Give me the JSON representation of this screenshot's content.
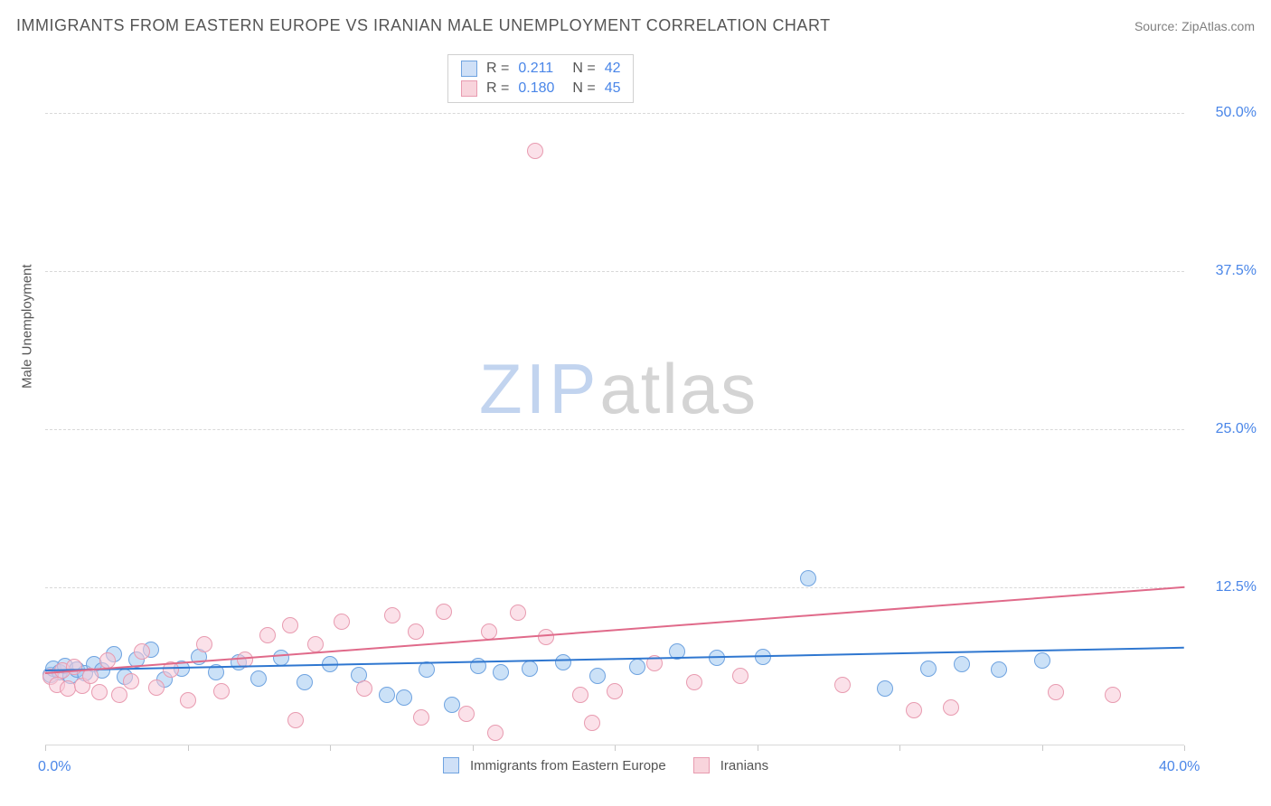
{
  "header": {
    "title": "IMMIGRANTS FROM EASTERN EUROPE VS IRANIAN MALE UNEMPLOYMENT CORRELATION CHART",
    "source": "Source: ZipAtlas.com"
  },
  "axes": {
    "y_label": "Male Unemployment",
    "x_min": 0,
    "x_max": 40,
    "y_min": 0,
    "y_max": 55,
    "y_ticks": [
      12.5,
      25.0,
      37.5,
      50.0
    ],
    "y_tick_labels": [
      "12.5%",
      "25.0%",
      "37.5%",
      "50.0%"
    ],
    "x_ticks": [
      0,
      5,
      10,
      15,
      20,
      25,
      30,
      35,
      40
    ],
    "x_left_label": "0.0%",
    "x_right_label": "40.0%",
    "grid_color": "#d8d8d8",
    "tick_label_color": "#4a86e8"
  },
  "watermark": {
    "zip": "ZIP",
    "atlas": "atlas"
  },
  "legend_top": {
    "rows": [
      {
        "swatch_fill": "#cfe0f7",
        "swatch_border": "#6fa3e0",
        "r_label": "R =",
        "r_value": "0.211",
        "n_label": "N =",
        "n_value": "42"
      },
      {
        "swatch_fill": "#f8d4dc",
        "swatch_border": "#e89bb0",
        "r_label": "R =",
        "r_value": "0.180",
        "n_label": "N =",
        "n_value": "45"
      }
    ]
  },
  "legend_bottom": {
    "items": [
      {
        "swatch_fill": "#cfe0f7",
        "swatch_border": "#6fa3e0",
        "label": "Immigrants from Eastern Europe"
      },
      {
        "swatch_fill": "#f8d4dc",
        "swatch_border": "#e89bb0",
        "label": "Iranians"
      }
    ]
  },
  "series": [
    {
      "name": "Immigrants from Eastern Europe",
      "marker_fill": "rgba(160,200,240,0.55)",
      "marker_border": "#6fa3e0",
      "marker_radius": 9,
      "trend_color": "#2f77d0",
      "trend": {
        "x1": 0,
        "y1": 6.0,
        "x2": 40,
        "y2": 7.8
      },
      "points": [
        {
          "x": 0.2,
          "y": 5.6
        },
        {
          "x": 0.3,
          "y": 6.1
        },
        {
          "x": 0.5,
          "y": 5.8
        },
        {
          "x": 0.7,
          "y": 6.3
        },
        {
          "x": 0.9,
          "y": 5.5
        },
        {
          "x": 1.1,
          "y": 6.0
        },
        {
          "x": 1.4,
          "y": 5.7
        },
        {
          "x": 1.7,
          "y": 6.4
        },
        {
          "x": 2.0,
          "y": 5.9
        },
        {
          "x": 2.4,
          "y": 7.2
        },
        {
          "x": 2.8,
          "y": 5.4
        },
        {
          "x": 3.2,
          "y": 6.8
        },
        {
          "x": 3.7,
          "y": 7.6
        },
        {
          "x": 4.2,
          "y": 5.2
        },
        {
          "x": 4.8,
          "y": 6.1
        },
        {
          "x": 5.4,
          "y": 7.0
        },
        {
          "x": 6.0,
          "y": 5.8
        },
        {
          "x": 6.8,
          "y": 6.6
        },
        {
          "x": 7.5,
          "y": 5.3
        },
        {
          "x": 8.3,
          "y": 6.9
        },
        {
          "x": 9.1,
          "y": 5.0
        },
        {
          "x": 10.0,
          "y": 6.4
        },
        {
          "x": 11.0,
          "y": 5.6
        },
        {
          "x": 12.0,
          "y": 4.0
        },
        {
          "x": 12.6,
          "y": 3.8
        },
        {
          "x": 13.4,
          "y": 6.0
        },
        {
          "x": 14.3,
          "y": 3.2
        },
        {
          "x": 15.2,
          "y": 6.3
        },
        {
          "x": 16.0,
          "y": 5.8
        },
        {
          "x": 17.0,
          "y": 6.1
        },
        {
          "x": 18.2,
          "y": 6.6
        },
        {
          "x": 19.4,
          "y": 5.5
        },
        {
          "x": 20.8,
          "y": 6.2
        },
        {
          "x": 22.2,
          "y": 7.4
        },
        {
          "x": 23.6,
          "y": 6.9
        },
        {
          "x": 25.2,
          "y": 7.0
        },
        {
          "x": 26.8,
          "y": 13.2
        },
        {
          "x": 29.5,
          "y": 4.5
        },
        {
          "x": 31.0,
          "y": 6.1
        },
        {
          "x": 32.2,
          "y": 6.4
        },
        {
          "x": 33.5,
          "y": 6.0
        },
        {
          "x": 35.0,
          "y": 6.7
        }
      ]
    },
    {
      "name": "Iranians",
      "marker_fill": "rgba(248,200,215,0.55)",
      "marker_border": "#e89bb0",
      "marker_radius": 9,
      "trend_color": "#e06a8a",
      "trend": {
        "x1": 0,
        "y1": 5.8,
        "x2": 40,
        "y2": 12.6
      },
      "points": [
        {
          "x": 0.2,
          "y": 5.4
        },
        {
          "x": 0.4,
          "y": 4.8
        },
        {
          "x": 0.6,
          "y": 5.9
        },
        {
          "x": 0.8,
          "y": 4.5
        },
        {
          "x": 1.0,
          "y": 6.2
        },
        {
          "x": 1.3,
          "y": 4.7
        },
        {
          "x": 1.6,
          "y": 5.5
        },
        {
          "x": 1.9,
          "y": 4.2
        },
        {
          "x": 2.2,
          "y": 6.7
        },
        {
          "x": 2.6,
          "y": 4.0
        },
        {
          "x": 3.0,
          "y": 5.1
        },
        {
          "x": 3.4,
          "y": 7.4
        },
        {
          "x": 3.9,
          "y": 4.6
        },
        {
          "x": 4.4,
          "y": 6.0
        },
        {
          "x": 5.0,
          "y": 3.6
        },
        {
          "x": 5.6,
          "y": 8.0
        },
        {
          "x": 6.2,
          "y": 4.3
        },
        {
          "x": 7.0,
          "y": 6.8
        },
        {
          "x": 7.8,
          "y": 8.7
        },
        {
          "x": 8.6,
          "y": 9.5
        },
        {
          "x": 8.8,
          "y": 2.0
        },
        {
          "x": 9.5,
          "y": 8.0
        },
        {
          "x": 10.4,
          "y": 9.8
        },
        {
          "x": 11.2,
          "y": 4.5
        },
        {
          "x": 12.2,
          "y": 10.3
        },
        {
          "x": 13.0,
          "y": 9.0
        },
        {
          "x": 13.2,
          "y": 2.2
        },
        {
          "x": 14.0,
          "y": 10.6
        },
        {
          "x": 14.8,
          "y": 2.5
        },
        {
          "x": 15.6,
          "y": 9.0
        },
        {
          "x": 15.8,
          "y": 1.0
        },
        {
          "x": 16.6,
          "y": 10.5
        },
        {
          "x": 17.2,
          "y": 47.0
        },
        {
          "x": 17.6,
          "y": 8.6
        },
        {
          "x": 18.8,
          "y": 4.0
        },
        {
          "x": 19.2,
          "y": 1.8
        },
        {
          "x": 20.0,
          "y": 4.3
        },
        {
          "x": 21.4,
          "y": 6.5
        },
        {
          "x": 22.8,
          "y": 5.0
        },
        {
          "x": 24.4,
          "y": 5.5
        },
        {
          "x": 28.0,
          "y": 4.8
        },
        {
          "x": 30.5,
          "y": 2.8
        },
        {
          "x": 31.8,
          "y": 3.0
        },
        {
          "x": 35.5,
          "y": 4.2
        },
        {
          "x": 37.5,
          "y": 4.0
        }
      ]
    }
  ]
}
